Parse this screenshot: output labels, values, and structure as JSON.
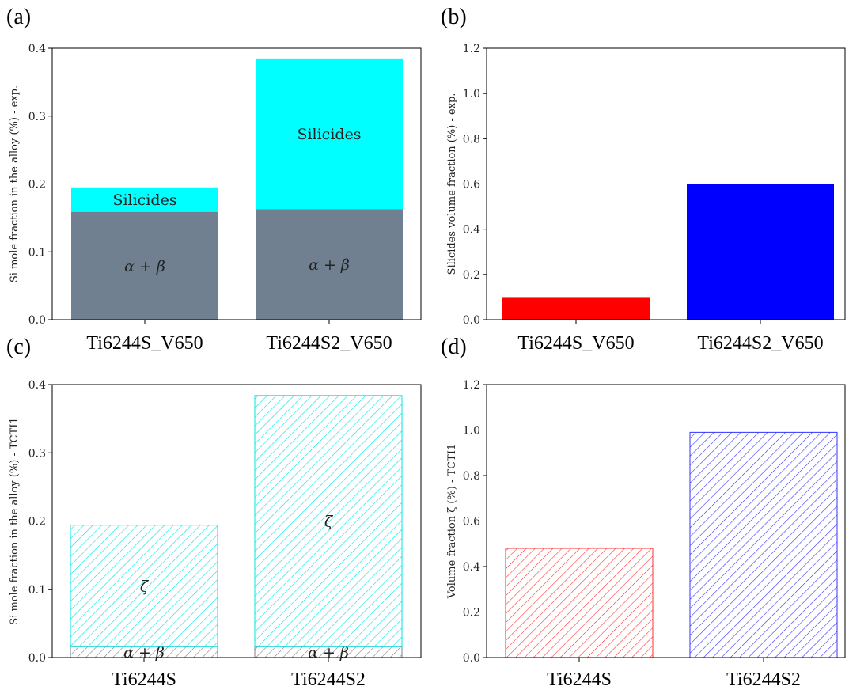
{
  "chart_data": [
    {
      "panel": "(a)",
      "type": "bar",
      "stacked": true,
      "categories": [
        "Ti6244S_V650",
        "Ti6244S2_V650"
      ],
      "ylabel": "Si mole fraction in the alloy (%) - exp.",
      "ylim": [
        0,
        0.4
      ],
      "yticks": [
        "0.0",
        "0.1",
        "0.2",
        "0.3",
        "0.4"
      ],
      "series": [
        {
          "name": "α + β",
          "values": [
            0.159,
            0.163
          ],
          "color": "#708090",
          "hatch": false
        },
        {
          "name": "Silicides",
          "values": [
            0.036,
            0.222
          ],
          "color": "#00ffff",
          "hatch": false
        }
      ],
      "bar_labels": [
        [
          "α + β",
          "α + β"
        ],
        [
          "Silicides",
          "Silicides"
        ]
      ]
    },
    {
      "panel": "(b)",
      "type": "bar",
      "stacked": false,
      "categories": [
        "Ti6244S_V650",
        "Ti6244S2_V650"
      ],
      "ylabel": "Silicides volume fraction (%) - exp.",
      "ylim": [
        0,
        1.2
      ],
      "yticks": [
        "0.0",
        "0.2",
        "0.4",
        "0.6",
        "0.8",
        "1.0",
        "1.2"
      ],
      "series": [
        {
          "name": "",
          "values": [
            0.1,
            0.6
          ],
          "colors": [
            "#ff0000",
            "#0000ff"
          ],
          "hatch": false
        }
      ]
    },
    {
      "panel": "(c)",
      "type": "bar",
      "stacked": true,
      "categories": [
        "Ti6244S",
        "Ti6244S2"
      ],
      "ylabel": "Si mole fraction in the alloy (%) - TCTI1",
      "ylim": [
        0,
        0.4
      ],
      "yticks": [
        "0.0",
        "0.1",
        "0.2",
        "0.3",
        "0.4"
      ],
      "series": [
        {
          "name": "α + β",
          "values": [
            0.016,
            0.016
          ],
          "color": "#808080",
          "hatch": true
        },
        {
          "name": "ζ",
          "values": [
            0.178,
            0.368
          ],
          "color": "#00e5e5",
          "hatch": true
        }
      ],
      "bar_labels": [
        [
          "α + β",
          "α + β"
        ],
        [
          "ζ",
          "ζ"
        ]
      ]
    },
    {
      "panel": "(d)",
      "type": "bar",
      "stacked": false,
      "categories": [
        "Ti6244S",
        "Ti6244S2"
      ],
      "ylabel": "Volume fraction ζ (%) - TCTI1",
      "ylim": [
        0,
        1.2
      ],
      "yticks": [
        "0.0",
        "0.2",
        "0.4",
        "0.6",
        "0.8",
        "1.0",
        "1.2"
      ],
      "series": [
        {
          "name": "",
          "values": [
            0.48,
            0.99
          ],
          "colors": [
            "#ff3333",
            "#3333ff"
          ],
          "hatch": true
        }
      ]
    }
  ]
}
